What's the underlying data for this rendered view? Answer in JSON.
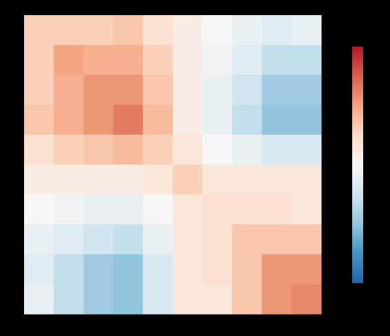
{
  "chart_data": {
    "type": "heatmap",
    "zlim": [
      -1,
      1
    ],
    "colormap": [
      "#2166ac",
      "#4393c3",
      "#92c5de",
      "#d1e5f0",
      "#f7f7f7",
      "#fddbc7",
      "#f4a582",
      "#d6604d",
      "#b2182b"
    ],
    "z": [
      [
        0.3,
        0.3,
        0.3,
        0.35,
        0.2,
        0.1,
        0,
        -0.1,
        -0.15,
        -0.1
      ],
      [
        0.3,
        0.5,
        0.45,
        0.45,
        0.3,
        0.1,
        -0.05,
        -0.15,
        -0.3,
        -0.3
      ],
      [
        0.3,
        0.45,
        0.55,
        0.55,
        0.35,
        0.1,
        -0.1,
        -0.25,
        -0.45,
        -0.45
      ],
      [
        0.35,
        0.45,
        0.55,
        0.65,
        0.4,
        0.1,
        -0.1,
        -0.3,
        -0.5,
        -0.5
      ],
      [
        0.2,
        0.3,
        0.35,
        0.4,
        0.3,
        0.15,
        0,
        -0.1,
        -0.2,
        -0.2
      ],
      [
        0.1,
        0.1,
        0.1,
        0.1,
        0.15,
        0.3,
        0.15,
        0.15,
        0.15,
        0.15
      ],
      [
        0,
        -0.05,
        -0.1,
        -0.1,
        0,
        0.15,
        0.2,
        0.2,
        0.2,
        0.15
      ],
      [
        -0.1,
        -0.15,
        -0.25,
        -0.3,
        -0.1,
        0.15,
        0.2,
        0.35,
        0.35,
        0.35
      ],
      [
        -0.15,
        -0.3,
        -0.45,
        -0.5,
        -0.2,
        0.15,
        0.2,
        0.35,
        0.55,
        0.55
      ],
      [
        -0.1,
        -0.3,
        -0.45,
        -0.5,
        -0.2,
        0.15,
        0.15,
        0.35,
        0.55,
        0.6
      ]
    ]
  }
}
